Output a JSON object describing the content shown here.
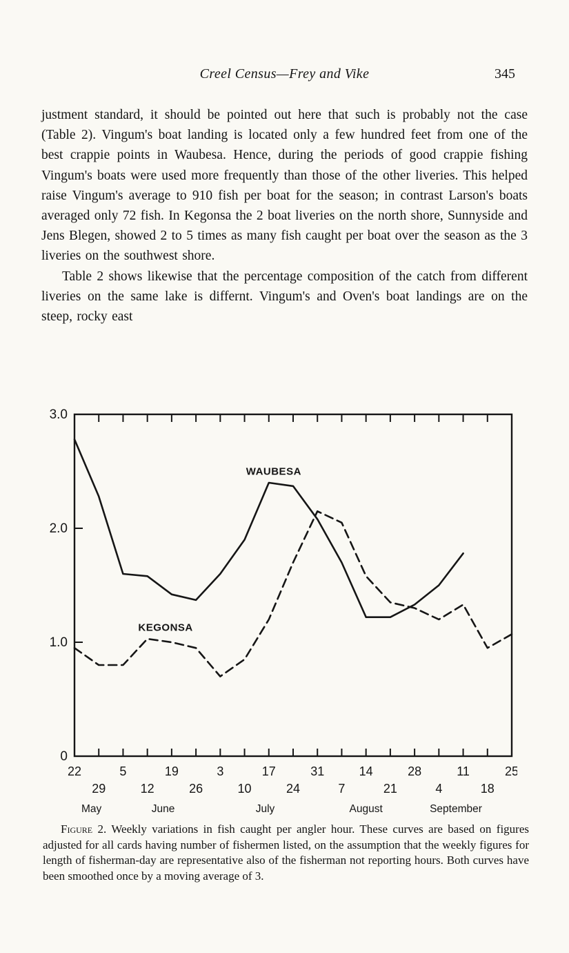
{
  "header": {
    "title": "Creel Census—Frey and Vike",
    "page_number": "345"
  },
  "paragraphs": [
    "justment standard, it should be pointed out here that such is probably not the case (Table 2). Vingum's boat landing is located only a few hundred feet from one of the best crappie points in Waubesa. Hence, during the periods of good crappie fishing Vingum's boats were used more frequently than those of the other liveries. This helped raise Vingum's average to 910 fish per boat for the season; in contrast Larson's boats averaged only 72 fish. In Kegonsa the 2 boat liveries on the north shore, Sunnyside and Jens Blegen, showed 2 to 5 times as many fish caught per boat over the season as the 3 liveries on the southwest shore.",
    "Table 2 shows likewise that the percentage composition of the catch from different liveries on the same lake is differnt. Vingum's and Oven's boat landings are on the steep, rocky east"
  ],
  "caption": {
    "label": "Figure 2.",
    "text": "Weekly variations in fish caught per angler hour. These curves are based on figures adjusted for all cards having number of fishermen listed, on the assumption that the weekly figures for length of fisherman-day are representative also of the fisherman not reporting hours. Both curves have been smoothed once by a moving average of 3."
  },
  "chart_data": {
    "type": "line",
    "title": "",
    "xlabel": "",
    "ylabel": "fish caught per angler hour",
    "ylim": [
      0,
      3.0
    ],
    "yticks": [
      0,
      1.0,
      2.0,
      3.0
    ],
    "ytick_labels": [
      "0",
      "1.0",
      "2.0",
      "3.0"
    ],
    "x_tick_labels": [
      "22",
      "29",
      "5",
      "12",
      "19",
      "26",
      "3",
      "10",
      "17",
      "24",
      "31",
      "7",
      "14",
      "21",
      "28",
      "4",
      "11",
      "18",
      "25"
    ],
    "months": [
      {
        "label": "May",
        "x_index": 0.7
      },
      {
        "label": "June",
        "x_index": 3.65
      },
      {
        "label": "July",
        "x_index": 7.85
      },
      {
        "label": "August",
        "x_index": 12.0
      },
      {
        "label": "September",
        "x_index": 15.7
      }
    ],
    "series": [
      {
        "name": "WAUBESA",
        "style": "solid",
        "values": [
          2.78,
          2.28,
          1.6,
          1.58,
          1.42,
          1.37,
          1.6,
          1.9,
          2.4,
          2.37,
          2.08,
          1.7,
          1.22,
          1.22,
          1.33,
          1.5,
          1.78,
          null,
          null
        ],
        "label_x": 8.2,
        "label_y": 2.47
      },
      {
        "name": "KEGONSA",
        "style": "dashed",
        "values": [
          0.95,
          0.8,
          0.8,
          1.03,
          1.0,
          0.95,
          0.7,
          0.85,
          1.2,
          1.7,
          2.15,
          2.05,
          1.58,
          1.35,
          1.3,
          1.2,
          1.33,
          0.95,
          1.07
        ],
        "label_x": 3.75,
        "label_y": 1.1
      }
    ]
  }
}
